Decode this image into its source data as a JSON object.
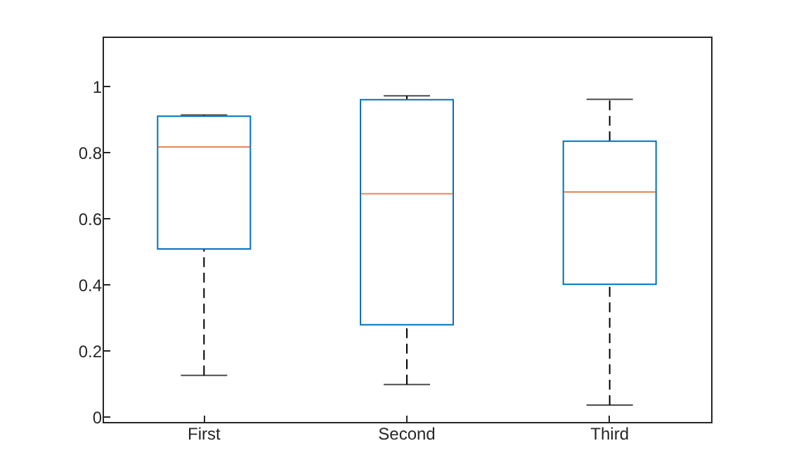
{
  "chart_data": {
    "type": "box",
    "categories": [
      "First",
      "Second",
      "Third"
    ],
    "series": [
      {
        "color": "#0072bd",
        "boxes": [
          {
            "low": 0.126,
            "q1": 0.508,
            "median": 0.816,
            "q3": 0.909,
            "high": 0.913
          },
          {
            "low": 0.098,
            "q1": 0.279,
            "median": 0.675,
            "q3": 0.959,
            "high": 0.971
          },
          {
            "low": 0.036,
            "q1": 0.401,
            "median": 0.68,
            "q3": 0.834,
            "high": 0.96
          }
        ]
      }
    ],
    "ylim": [
      -0.015,
      1.15
    ],
    "yticks": [
      0,
      0.2,
      0.4,
      0.6,
      0.8,
      1
    ]
  }
}
